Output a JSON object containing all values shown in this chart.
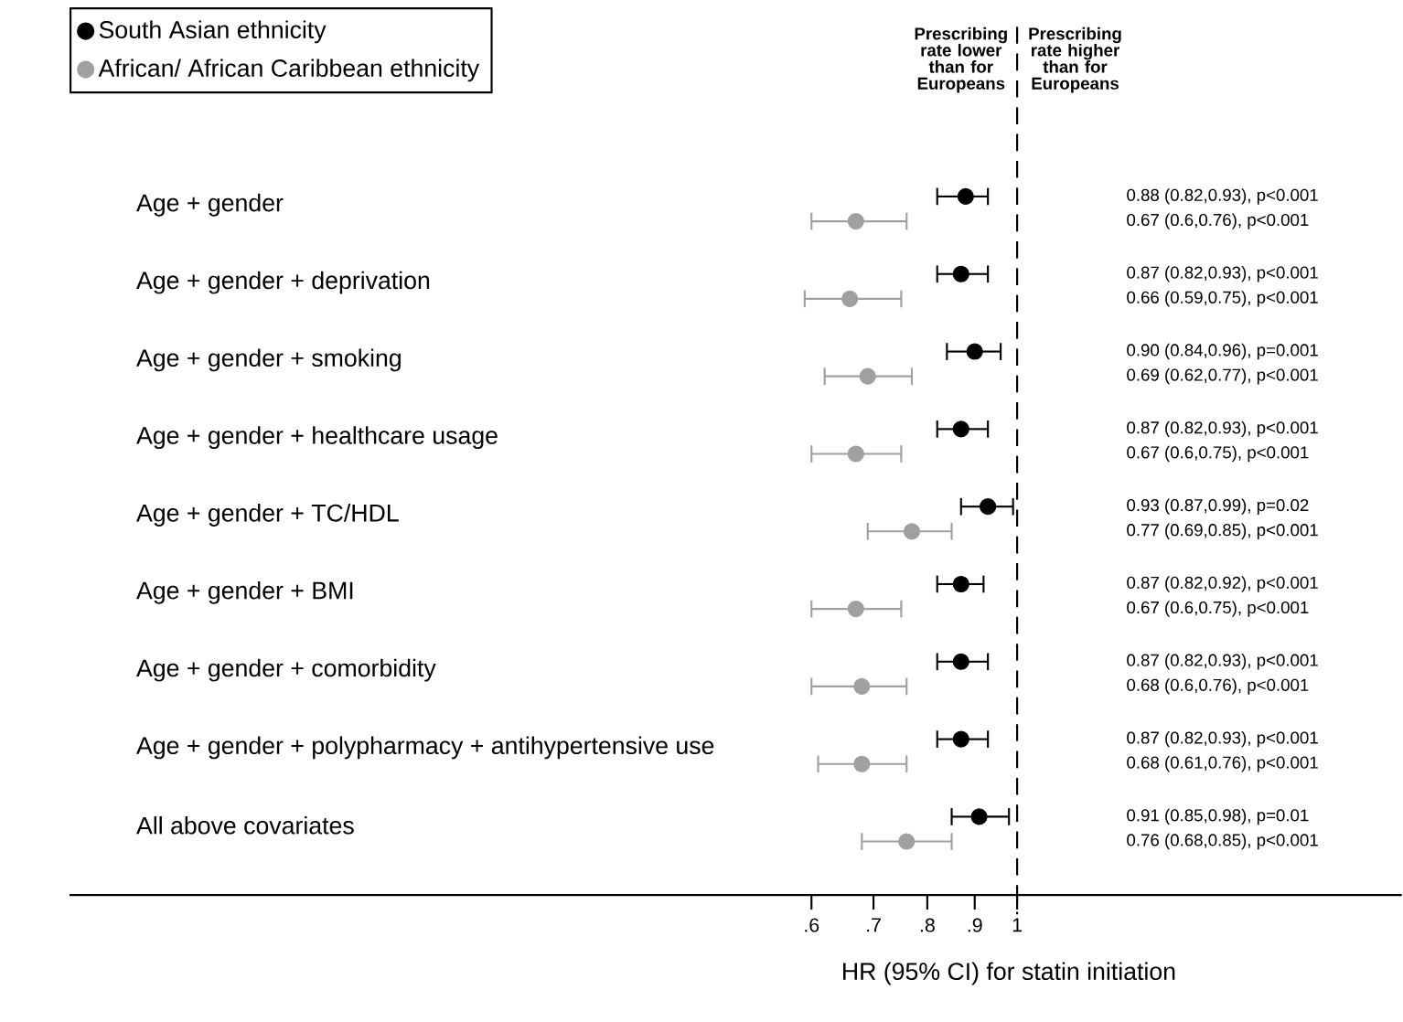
{
  "chart_data": {
    "type": "scatter",
    "orientation": "horizontal",
    "log": "x",
    "marker": "circle",
    "legend": "top left",
    "xlabel": "HR (95% CI) for statin initiation",
    "categories": [
      "Age + gender",
      "Age + gender + deprivation",
      "Age + gender + smoking",
      "Age + gender + healthcare usage",
      "Age + gender + TC/HDL",
      "Age + gender + BMI",
      "Age + gender + comorbidity",
      "Age + gender + polypharmacy + antihypertensive use",
      "All above covariates"
    ],
    "series": [
      {
        "name": "South Asian ethnicity",
        "color": "#000000",
        "values": [
          0.88,
          0.87,
          0.9,
          0.87,
          0.93,
          0.87,
          0.87,
          0.87,
          0.91
        ],
        "errors": [
          [
            0.82,
            0.93
          ],
          [
            0.82,
            0.93
          ],
          [
            0.84,
            0.96
          ],
          [
            0.82,
            0.93
          ],
          [
            0.87,
            0.99
          ],
          [
            0.82,
            0.92
          ],
          [
            0.82,
            0.93
          ],
          [
            0.82,
            0.93
          ],
          [
            0.85,
            0.98
          ]
        ]
      },
      {
        "name": "African/ African Caribbean ethnicity",
        "color": "#a0a0a0",
        "values": [
          0.67,
          0.66,
          0.69,
          0.67,
          0.77,
          0.67,
          0.68,
          0.68,
          0.76
        ],
        "errors": [
          [
            0.6,
            0.76
          ],
          [
            0.59,
            0.75
          ],
          [
            0.62,
            0.77
          ],
          [
            0.6,
            0.75
          ],
          [
            0.69,
            0.85
          ],
          [
            0.6,
            0.75
          ],
          [
            0.6,
            0.76
          ],
          [
            0.61,
            0.76
          ],
          [
            0.68,
            0.85
          ]
        ]
      }
    ],
    "xlim": [
      0.095,
      2.6
    ],
    "xticks": [
      {
        "value": 0.6,
        "label": ".6"
      },
      {
        "value": 0.7,
        "label": ".7"
      },
      {
        "value": 0.8,
        "label": ".8"
      },
      {
        "value": 0.9,
        "label": ".9"
      },
      1
    ],
    "ref_lines": [
      {
        "axis": "x",
        "value": 1,
        "line_style": "dashed",
        "color": "#000000"
      }
    ],
    "annotations": [
      "Prescribing rate lower than for Europeans",
      "Prescribing rate higher than for Europeans",
      "0.88 (0.82,0.93), p<0.001",
      "0.67 (0.6,0.76), p<0.001",
      "0.87 (0.82,0.93), p<0.001",
      "0.66 (0.59,0.75), p<0.001",
      "0.90 (0.84,0.96), p=0.001",
      "0.69 (0.62,0.77), p<0.001",
      "0.87 (0.82,0.93), p<0.001",
      "0.67 (0.6,0.75), p<0.001",
      "0.93 (0.87,0.99), p=0.02",
      "0.77 (0.69,0.85), p<0.001",
      "0.87 (0.82,0.92), p<0.001",
      "0.67 (0.6,0.75), p<0.001",
      "0.87 (0.82,0.93), p<0.001",
      "0.68 (0.6,0.76), p<0.001",
      "0.87 (0.82,0.93), p<0.001",
      "0.68 (0.61,0.76), p<0.001",
      "0.91 (0.85,0.98), p=0.01",
      "0.76 (0.68,0.85), p<0.001"
    ]
  }
}
